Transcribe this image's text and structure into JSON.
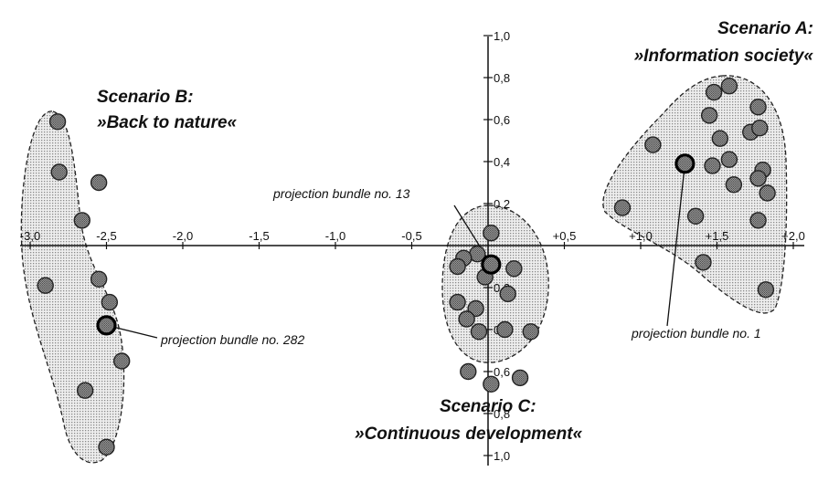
{
  "chart_data": {
    "type": "scatter",
    "title": "",
    "xlabel": "",
    "ylabel": "",
    "xlim": [
      -3.0,
      2.0
    ],
    "ylim": [
      -1.0,
      1.0
    ],
    "grid": false,
    "x_ticks": [
      {
        "value": -3.0,
        "label": "-3,0"
      },
      {
        "value": -2.5,
        "label": "-2,5"
      },
      {
        "value": -2.0,
        "label": "-2,0"
      },
      {
        "value": -1.5,
        "label": "-1,5"
      },
      {
        "value": -1.0,
        "label": "-1,0"
      },
      {
        "value": -0.5,
        "label": "-0,5"
      },
      {
        "value": 0.5,
        "label": "+0,5"
      },
      {
        "value": 1.0,
        "label": "+1,0"
      },
      {
        "value": 1.5,
        "label": "+1,5"
      },
      {
        "value": 2.0,
        "label": "+2,0"
      }
    ],
    "y_ticks": [
      {
        "value": 1.0,
        "label": "1,0"
      },
      {
        "value": 0.8,
        "label": "0,8"
      },
      {
        "value": 0.6,
        "label": "0,6"
      },
      {
        "value": 0.4,
        "label": "0,4"
      },
      {
        "value": 0.2,
        "label": "0,2"
      },
      {
        "value": -0.2,
        "label": "0,2"
      },
      {
        "value": -0.4,
        "label": "0,4"
      },
      {
        "value": -0.6,
        "label": "0,6"
      },
      {
        "value": -0.8,
        "label": "0,8"
      },
      {
        "value": -1.0,
        "label": "1,0"
      }
    ],
    "scenarios": [
      {
        "id": "B",
        "title": "Scenario B:",
        "subtitle": "»Back to nature«",
        "points": [
          {
            "x": -2.82,
            "y": 0.59
          },
          {
            "x": -2.81,
            "y": 0.35
          },
          {
            "x": -2.55,
            "y": 0.3
          },
          {
            "x": -2.66,
            "y": 0.12
          },
          {
            "x": -2.55,
            "y": -0.16
          },
          {
            "x": -2.9,
            "y": -0.19
          },
          {
            "x": -2.48,
            "y": -0.27
          },
          {
            "x": -2.4,
            "y": -0.55
          },
          {
            "x": -2.64,
            "y": -0.69
          },
          {
            "x": -2.5,
            "y": -0.96
          }
        ]
      },
      {
        "id": "C",
        "title": "Scenario C:",
        "subtitle": "»Continuous development«",
        "points": [
          {
            "x": 0.02,
            "y": 0.06
          },
          {
            "x": -0.07,
            "y": -0.04
          },
          {
            "x": -0.16,
            "y": -0.06
          },
          {
            "x": -0.2,
            "y": -0.1
          },
          {
            "x": 0.17,
            "y": -0.11
          },
          {
            "x": -0.02,
            "y": -0.15
          },
          {
            "x": -0.2,
            "y": -0.27
          },
          {
            "x": -0.08,
            "y": -0.3
          },
          {
            "x": 0.13,
            "y": -0.23
          },
          {
            "x": -0.14,
            "y": -0.35
          },
          {
            "x": -0.06,
            "y": -0.41
          },
          {
            "x": 0.28,
            "y": -0.41
          },
          {
            "x": 0.11,
            "y": -0.4
          },
          {
            "x": -0.13,
            "y": -0.6
          },
          {
            "x": 0.21,
            "y": -0.63
          },
          {
            "x": 0.02,
            "y": -0.66
          }
        ]
      },
      {
        "id": "A",
        "title": "Scenario A:",
        "subtitle": "»Information society«",
        "points": [
          {
            "x": 1.48,
            "y": 0.73
          },
          {
            "x": 1.58,
            "y": 0.76
          },
          {
            "x": 1.45,
            "y": 0.62
          },
          {
            "x": 1.77,
            "y": 0.66
          },
          {
            "x": 1.72,
            "y": 0.54
          },
          {
            "x": 1.78,
            "y": 0.56
          },
          {
            "x": 1.52,
            "y": 0.51
          },
          {
            "x": 1.08,
            "y": 0.48
          },
          {
            "x": 1.47,
            "y": 0.38
          },
          {
            "x": 1.58,
            "y": 0.41
          },
          {
            "x": 1.8,
            "y": 0.36
          },
          {
            "x": 1.77,
            "y": 0.32
          },
          {
            "x": 1.61,
            "y": 0.29
          },
          {
            "x": 1.83,
            "y": 0.25
          },
          {
            "x": 0.88,
            "y": 0.18
          },
          {
            "x": 1.36,
            "y": 0.14
          },
          {
            "x": 1.77,
            "y": 0.12
          },
          {
            "x": 1.41,
            "y": -0.08
          },
          {
            "x": 1.82,
            "y": -0.21
          }
        ]
      }
    ],
    "highlighted": [
      {
        "label": "projection bundle no. 13",
        "x": 0.02,
        "y": -0.09
      },
      {
        "label": "projection bundle no. 282",
        "x": -2.5,
        "y": -0.38
      },
      {
        "label": "projection bundle no. 1",
        "x": 1.29,
        "y": 0.39
      }
    ]
  }
}
